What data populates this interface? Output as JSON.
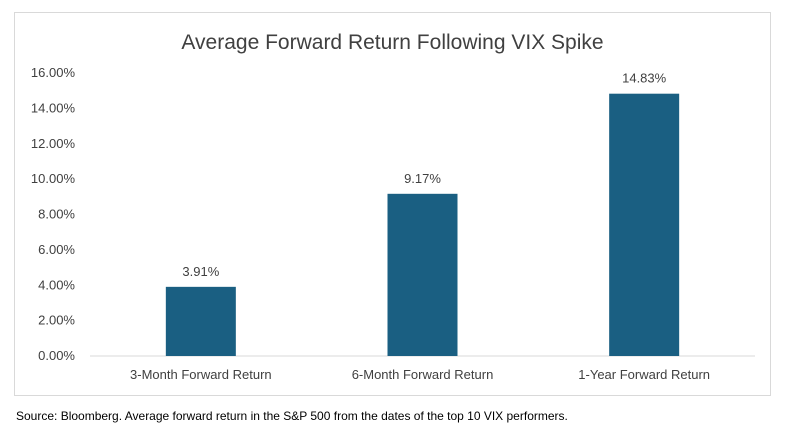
{
  "chart_data": {
    "type": "bar",
    "title": "Average Forward Return Following VIX Spike",
    "categories": [
      "3-Month Forward Return",
      "6-Month Forward Return",
      "1-Year Forward Return"
    ],
    "values": [
      3.91,
      9.17,
      14.83
    ],
    "data_labels": [
      "3.91%",
      "9.17%",
      "14.83%"
    ],
    "ylim": [
      0,
      16
    ],
    "yticks": [
      "0.00%",
      "2.00%",
      "4.00%",
      "6.00%",
      "8.00%",
      "10.00%",
      "12.00%",
      "14.00%",
      "16.00%"
    ],
    "ytick_values": [
      0,
      2,
      4,
      6,
      8,
      10,
      12,
      14,
      16
    ],
    "grid": false,
    "legend": "none",
    "bar_color": "#1a5f82",
    "axis_color": "#d9d9d9"
  },
  "footnote": "Source:  Bloomberg.  Average forward return in the S&P 500 from the dates of the top 10 VIX performers."
}
